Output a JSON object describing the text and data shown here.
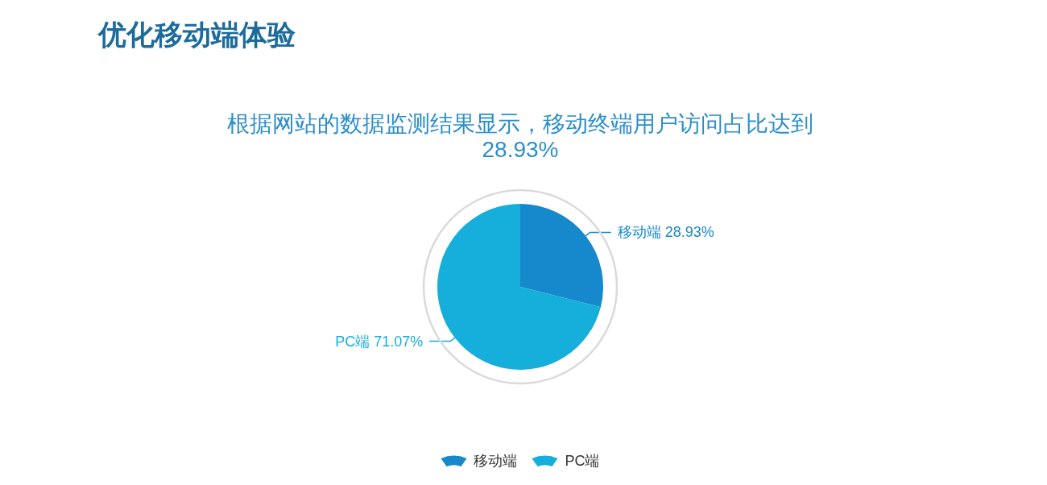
{
  "chart_data": {
    "type": "pie",
    "title": "优化移动端体验",
    "subtitle": "根据网站的数据监测结果显示，移动终端用户访问占比达到28.93%",
    "categories": [
      "移动端",
      "PC端"
    ],
    "values": [
      28.93,
      71.07
    ],
    "colors": [
      "#1589cb",
      "#16aedb"
    ],
    "value_labels": [
      "28.93%",
      "71.07%"
    ],
    "legend": "bottom"
  }
}
